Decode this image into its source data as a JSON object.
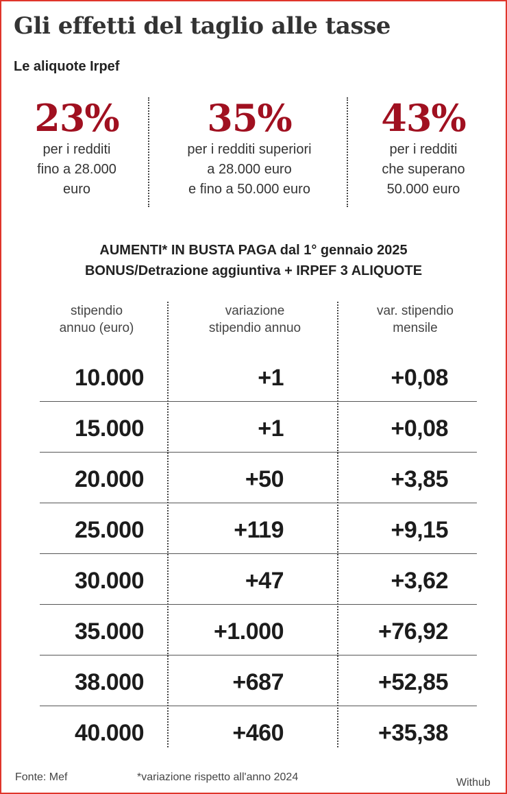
{
  "header": {
    "title": "Gli effetti del taglio alle tasse",
    "subtitle": "Le aliquote Irpef"
  },
  "rates": [
    {
      "pct": "23%",
      "desc": "per i redditi\nfino a 28.000\neuro"
    },
    {
      "pct": "35%",
      "desc": "per i redditi superiori\na 28.000 euro\ne fino a 50.000 euro"
    },
    {
      "pct": "43%",
      "desc": "per i redditi\nche superano\n50.000 euro"
    }
  ],
  "table": {
    "title_line1": "AUMENTI* IN BUSTA PAGA dal 1° gennaio 2025",
    "title_line2": "BONUS/Detrazione aggiuntiva + IRPEF 3 ALIQUOTE",
    "headers": [
      "stipendio\nannuo (euro)",
      "variazione\nstipendio annuo",
      "var. stipendio\nmensile"
    ],
    "rows": [
      [
        "10.000",
        "+1",
        "+0,08"
      ],
      [
        "15.000",
        "+1",
        "+0,08"
      ],
      [
        "20.000",
        "+50",
        "+3,85"
      ],
      [
        "25.000",
        "+119",
        "+9,15"
      ],
      [
        "30.000",
        "+47",
        "+3,62"
      ],
      [
        "35.000",
        "+1.000",
        "+76,92"
      ],
      [
        "38.000",
        "+687",
        "+52,85"
      ],
      [
        "40.000",
        "+460",
        "+35,38"
      ]
    ]
  },
  "footer": {
    "source": "Fonte: Mef",
    "note": "*variazione rispetto all'anno 2024",
    "credit": "Withub"
  },
  "colors": {
    "accent": "#a01020",
    "border": "#e0352b"
  }
}
